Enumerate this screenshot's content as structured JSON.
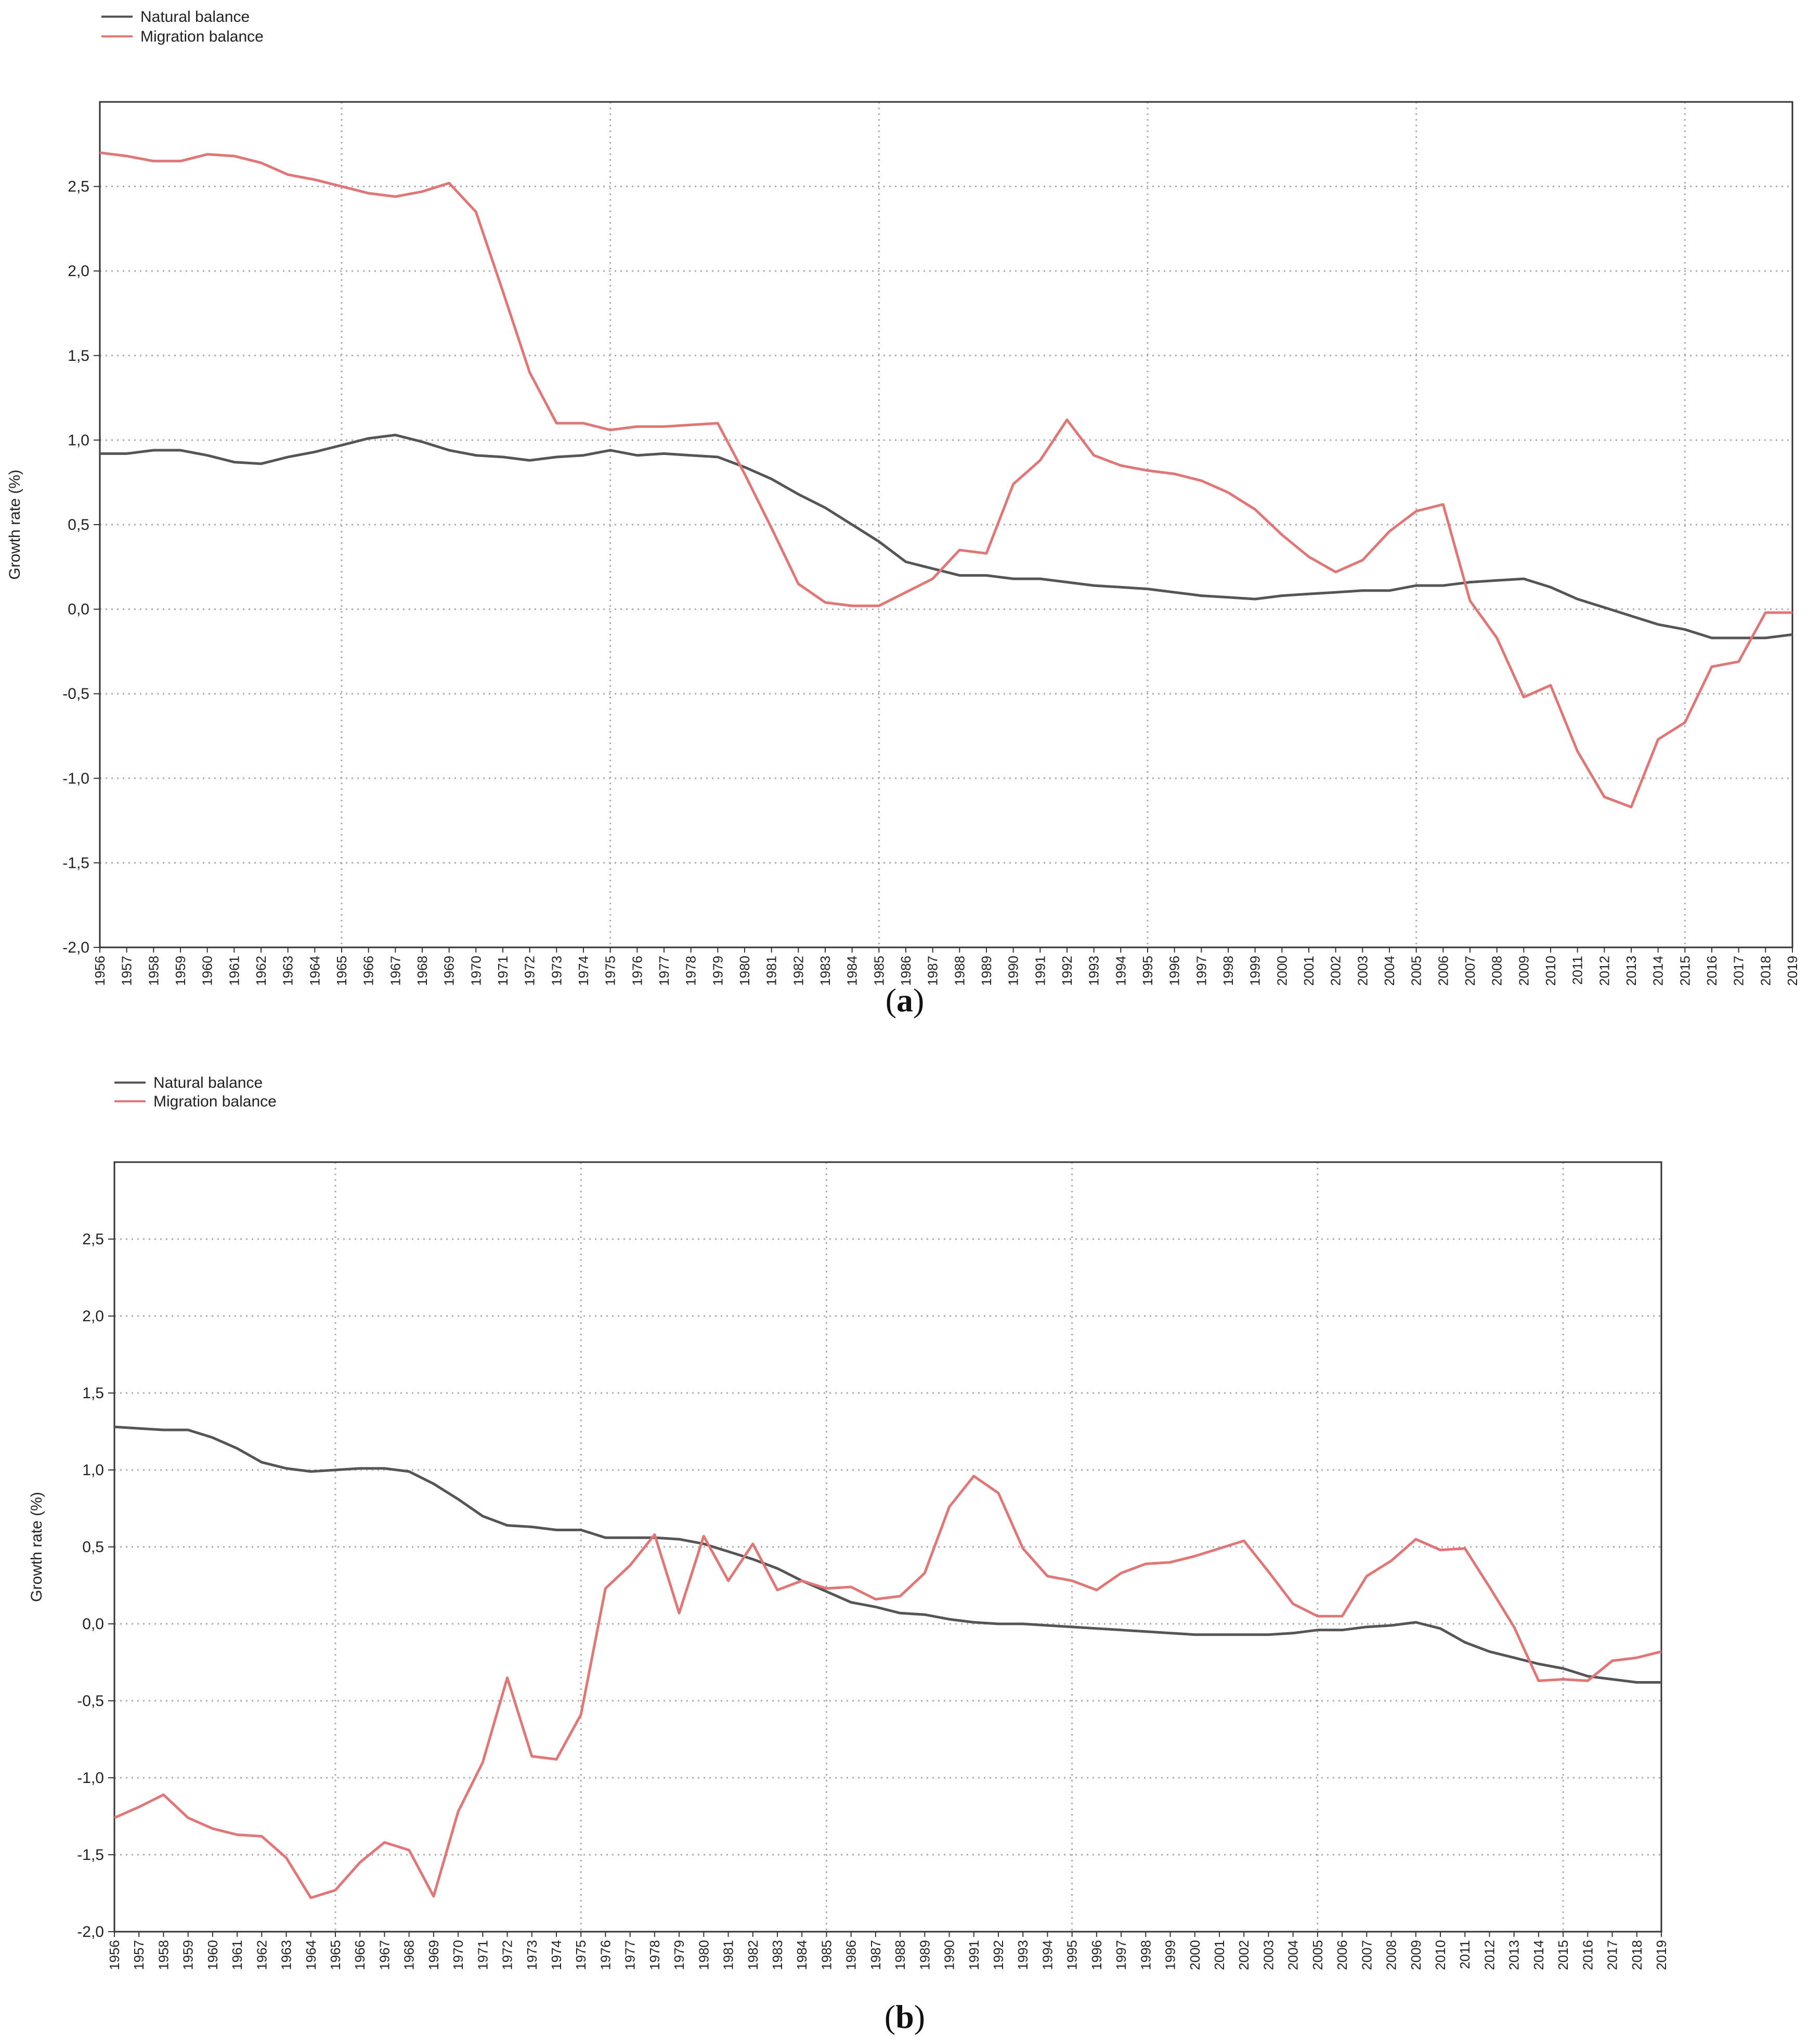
{
  "chart_data": [
    {
      "type": "line",
      "panel_label": "a",
      "ylabel": "Growth rate (%)",
      "ylim": [
        -2.0,
        3.0
      ],
      "yticks": [
        "-2,0",
        "-1,5",
        "-1,0",
        "-0,5",
        "0,0",
        "0,5",
        "1,0",
        "1,5",
        "2,0",
        "2,5"
      ],
      "grid": true,
      "legend_position": "top-left",
      "x": [
        1956,
        1957,
        1958,
        1959,
        1960,
        1961,
        1962,
        1963,
        1964,
        1965,
        1966,
        1967,
        1968,
        1969,
        1970,
        1971,
        1972,
        1973,
        1974,
        1975,
        1976,
        1977,
        1978,
        1979,
        1980,
        1981,
        1982,
        1983,
        1984,
        1985,
        1986,
        1987,
        1988,
        1989,
        1990,
        1991,
        1992,
        1993,
        1994,
        1995,
        1996,
        1997,
        1998,
        1999,
        2000,
        2001,
        2002,
        2003,
        2004,
        2005,
        2006,
        2007,
        2008,
        2009,
        2010,
        2011,
        2012,
        2013,
        2014,
        2015,
        2016,
        2017,
        2018,
        2019
      ],
      "series": [
        {
          "name": "Natural balance",
          "color": "#555555",
          "values": [
            0.92,
            0.92,
            0.94,
            0.94,
            0.91,
            0.87,
            0.86,
            0.9,
            0.93,
            0.97,
            1.01,
            1.03,
            0.99,
            0.94,
            0.91,
            0.9,
            0.88,
            0.9,
            0.91,
            0.94,
            0.91,
            0.92,
            0.91,
            0.9,
            0.84,
            0.77,
            0.68,
            0.6,
            0.5,
            0.4,
            0.28,
            0.24,
            0.2,
            0.2,
            0.18,
            0.18,
            0.16,
            0.14,
            0.13,
            0.12,
            0.1,
            0.08,
            0.07,
            0.06,
            0.08,
            0.09,
            0.1,
            0.11,
            0.11,
            0.14,
            0.14,
            0.16,
            0.17,
            0.18,
            0.13,
            0.06,
            0.01,
            -0.04,
            -0.09,
            -0.12,
            -0.17,
            -0.17,
            -0.17,
            -0.15
          ]
        },
        {
          "name": "Migration balance",
          "color": "#e07676",
          "values": [
            2.7,
            2.68,
            2.65,
            2.65,
            2.69,
            2.68,
            2.64,
            2.57,
            2.54,
            2.5,
            2.46,
            2.44,
            2.47,
            2.52,
            2.35,
            1.88,
            1.4,
            1.1,
            1.1,
            1.06,
            1.08,
            1.08,
            1.09,
            1.1,
            0.8,
            0.48,
            0.15,
            0.04,
            0.02,
            0.02,
            0.1,
            0.18,
            0.35,
            0.33,
            0.74,
            0.88,
            1.12,
            0.91,
            0.85,
            0.82,
            0.8,
            0.76,
            0.69,
            0.59,
            0.44,
            0.31,
            0.22,
            0.29,
            0.46,
            0.58,
            0.62,
            0.05,
            -0.17,
            -0.52,
            -0.45,
            -0.84,
            -1.11,
            -1.17,
            -0.77,
            -0.67,
            -0.34,
            -0.31,
            -0.02,
            -0.02
          ]
        }
      ]
    },
    {
      "type": "line",
      "panel_label": "b",
      "ylabel": "Growth rate (%)",
      "ylim": [
        -2.0,
        3.0
      ],
      "yticks": [
        "-2,0",
        "-1,5",
        "-1,0",
        "-0,5",
        "0,0",
        "0,5",
        "1,0",
        "1,5",
        "2,0",
        "2,5"
      ],
      "grid": true,
      "legend_position": "top-left",
      "x": [
        1956,
        1957,
        1958,
        1959,
        1960,
        1961,
        1962,
        1963,
        1964,
        1965,
        1966,
        1967,
        1968,
        1969,
        1970,
        1971,
        1972,
        1973,
        1974,
        1975,
        1976,
        1977,
        1978,
        1979,
        1980,
        1981,
        1982,
        1983,
        1984,
        1985,
        1986,
        1987,
        1988,
        1989,
        1990,
        1991,
        1992,
        1993,
        1994,
        1995,
        1996,
        1997,
        1998,
        1999,
        2000,
        2001,
        2002,
        2003,
        2004,
        2005,
        2006,
        2007,
        2008,
        2009,
        2010,
        2011,
        2012,
        2013,
        2014,
        2015,
        2016,
        2017,
        2018,
        2019
      ],
      "series": [
        {
          "name": "Natural balance",
          "color": "#555555",
          "values": [
            1.28,
            1.27,
            1.26,
            1.26,
            1.21,
            1.14,
            1.05,
            1.01,
            0.99,
            1.0,
            1.01,
            1.01,
            0.99,
            0.91,
            0.81,
            0.7,
            0.64,
            0.63,
            0.61,
            0.61,
            0.56,
            0.56,
            0.56,
            0.55,
            0.52,
            0.47,
            0.42,
            0.36,
            0.28,
            0.21,
            0.14,
            0.11,
            0.07,
            0.06,
            0.03,
            0.01,
            0.0,
            0.0,
            -0.01,
            -0.02,
            -0.03,
            -0.04,
            -0.05,
            -0.06,
            -0.07,
            -0.07,
            -0.07,
            -0.07,
            -0.06,
            -0.04,
            -0.04,
            -0.02,
            -0.01,
            0.01,
            -0.03,
            -0.12,
            -0.18,
            -0.22,
            -0.26,
            -0.29,
            -0.34,
            -0.36,
            -0.38,
            -0.38
          ]
        },
        {
          "name": "Migration balance",
          "color": "#e07676",
          "values": [
            -1.26,
            -1.19,
            -1.11,
            -1.26,
            -1.33,
            -1.37,
            -1.38,
            -1.52,
            -1.78,
            -1.73,
            -1.55,
            -1.42,
            -1.47,
            -1.77,
            -1.22,
            -0.9,
            -0.35,
            -0.86,
            -0.88,
            -0.59,
            0.23,
            0.38,
            0.58,
            0.07,
            0.57,
            0.28,
            0.52,
            0.22,
            0.28,
            0.23,
            0.24,
            0.16,
            0.18,
            0.33,
            0.76,
            0.96,
            0.85,
            0.49,
            0.31,
            0.28,
            0.22,
            0.33,
            0.39,
            0.4,
            0.44,
            0.49,
            0.54,
            0.34,
            0.13,
            0.05,
            0.05,
            0.31,
            0.41,
            0.55,
            0.48,
            0.49,
            0.24,
            -0.02,
            -0.37,
            -0.36,
            -0.37,
            -0.24,
            -0.22,
            -0.18
          ]
        }
      ]
    }
  ]
}
